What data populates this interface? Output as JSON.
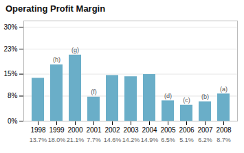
{
  "chart_data": {
    "type": "bar",
    "title": "Operating Profit Margin",
    "categories": [
      "1998",
      "1999",
      "2000",
      "2001",
      "2002",
      "2003",
      "2004",
      "2005",
      "2006",
      "2007",
      "2008"
    ],
    "values": [
      13.7,
      18.0,
      21.1,
      7.7,
      14.6,
      14.2,
      14.9,
      6.5,
      5.1,
      6.2,
      8.7
    ],
    "value_labels": [
      "13.7%",
      "18.0%",
      "21.1%",
      "7.7%",
      "14.6%",
      "14.2%",
      "14.9%",
      "6.5%",
      "5.1%",
      "6.2%",
      "8.7%"
    ],
    "data_labels": true,
    "annotations": [
      null,
      "(h)",
      "(g)",
      "(f)",
      null,
      null,
      null,
      "(d)",
      "(c)",
      "(b)",
      "(a)"
    ],
    "color": "#6aaec8",
    "ylim": [
      0,
      32
    ],
    "yticks": [
      {
        "value": 0,
        "label": "0%"
      },
      {
        "value": 8,
        "label": "8%"
      },
      {
        "value": 15,
        "label": "15%"
      },
      {
        "value": 23,
        "label": "23%"
      },
      {
        "value": 30,
        "label": "30%"
      }
    ],
    "grid": true
  }
}
